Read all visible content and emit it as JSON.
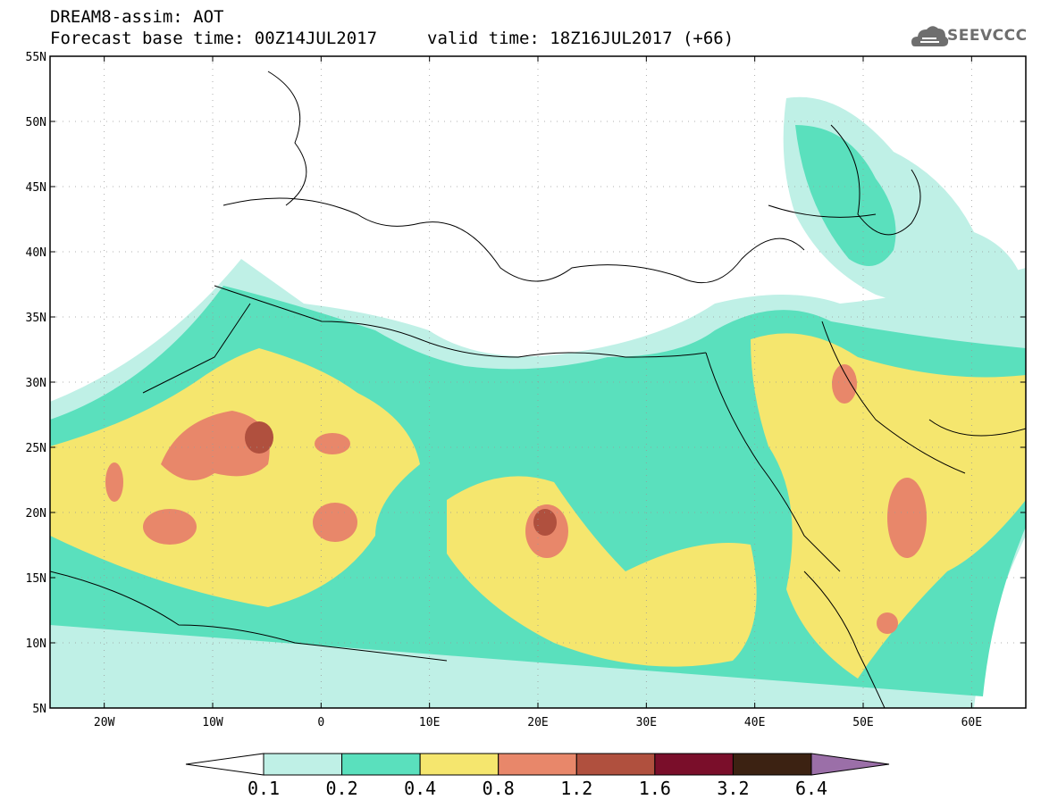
{
  "header": {
    "title": "DREAM8-assim: AOT",
    "base_time": "Forecast base time: 00Z14JUL2017",
    "valid_time": "valid time: 18Z16JUL2017 (+66)"
  },
  "logo": {
    "text": "SEEVCCC",
    "icon": "cloud-icon"
  },
  "map": {
    "lon_range": [
      -25,
      65
    ],
    "lat_range": [
      5,
      55
    ],
    "lon_ticks": [
      {
        "v": -20,
        "label": "20W"
      },
      {
        "v": -10,
        "label": "10W"
      },
      {
        "v": 0,
        "label": "0"
      },
      {
        "v": 10,
        "label": "10E"
      },
      {
        "v": 20,
        "label": "20E"
      },
      {
        "v": 30,
        "label": "30E"
      },
      {
        "v": 40,
        "label": "40E"
      },
      {
        "v": 50,
        "label": "50E"
      },
      {
        "v": 60,
        "label": "60E"
      }
    ],
    "lat_ticks": [
      {
        "v": 55,
        "label": "55N"
      },
      {
        "v": 50,
        "label": "50N"
      },
      {
        "v": 45,
        "label": "45N"
      },
      {
        "v": 40,
        "label": "40N"
      },
      {
        "v": 35,
        "label": "35N"
      },
      {
        "v": 30,
        "label": "30N"
      },
      {
        "v": 25,
        "label": "25N"
      },
      {
        "v": 20,
        "label": "20N"
      },
      {
        "v": 15,
        "label": "15N"
      },
      {
        "v": 10,
        "label": "10N"
      },
      {
        "v": 5,
        "label": "5N"
      }
    ],
    "grid": true
  },
  "colorbar": {
    "levels": [
      "0.1",
      "0.2",
      "0.4",
      "0.8",
      "1.2",
      "1.6",
      "3.2",
      "6.4"
    ],
    "colors": [
      "#ffffff",
      "#bff0e6",
      "#5ae0bd",
      "#f5e66e",
      "#e8876a",
      "#b0503e",
      "#7a0e2a",
      "#3c2212",
      "#9b6fa8"
    ]
  }
}
